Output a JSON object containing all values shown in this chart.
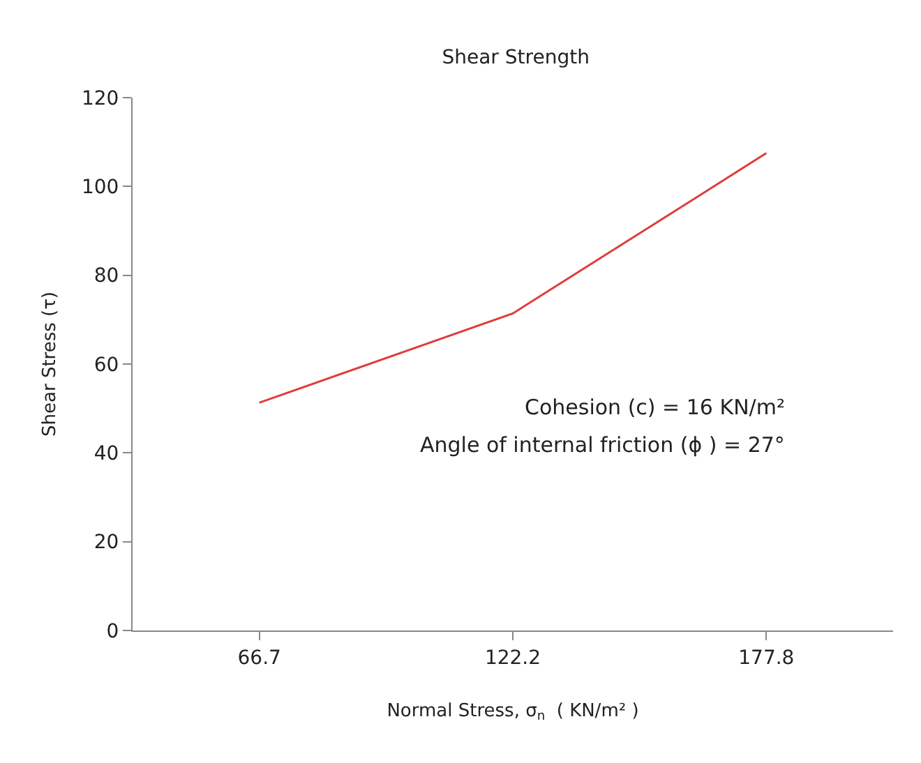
{
  "chart_data": {
    "type": "line",
    "title": "Shear Strength",
    "xlabel": "Normal Stress, σ$_{n}$  ( KN/m² )",
    "ylabel": "Shear Stress (τ)",
    "categories": [
      "66.7",
      "122.2",
      "177.8"
    ],
    "series": [
      {
        "color": "#e03c3c",
        "values": [
          51.3,
          71.4,
          107.5
        ]
      }
    ],
    "ylim": [
      0,
      120
    ],
    "yticks": [
      0,
      20,
      40,
      60,
      80,
      100,
      120
    ],
    "marker": "none",
    "line_style": "solid",
    "annotations": [
      "Cohesion (c) = 16 KN/m²",
      "Angle of internal friction (ϕ ) = 27°"
    ]
  }
}
